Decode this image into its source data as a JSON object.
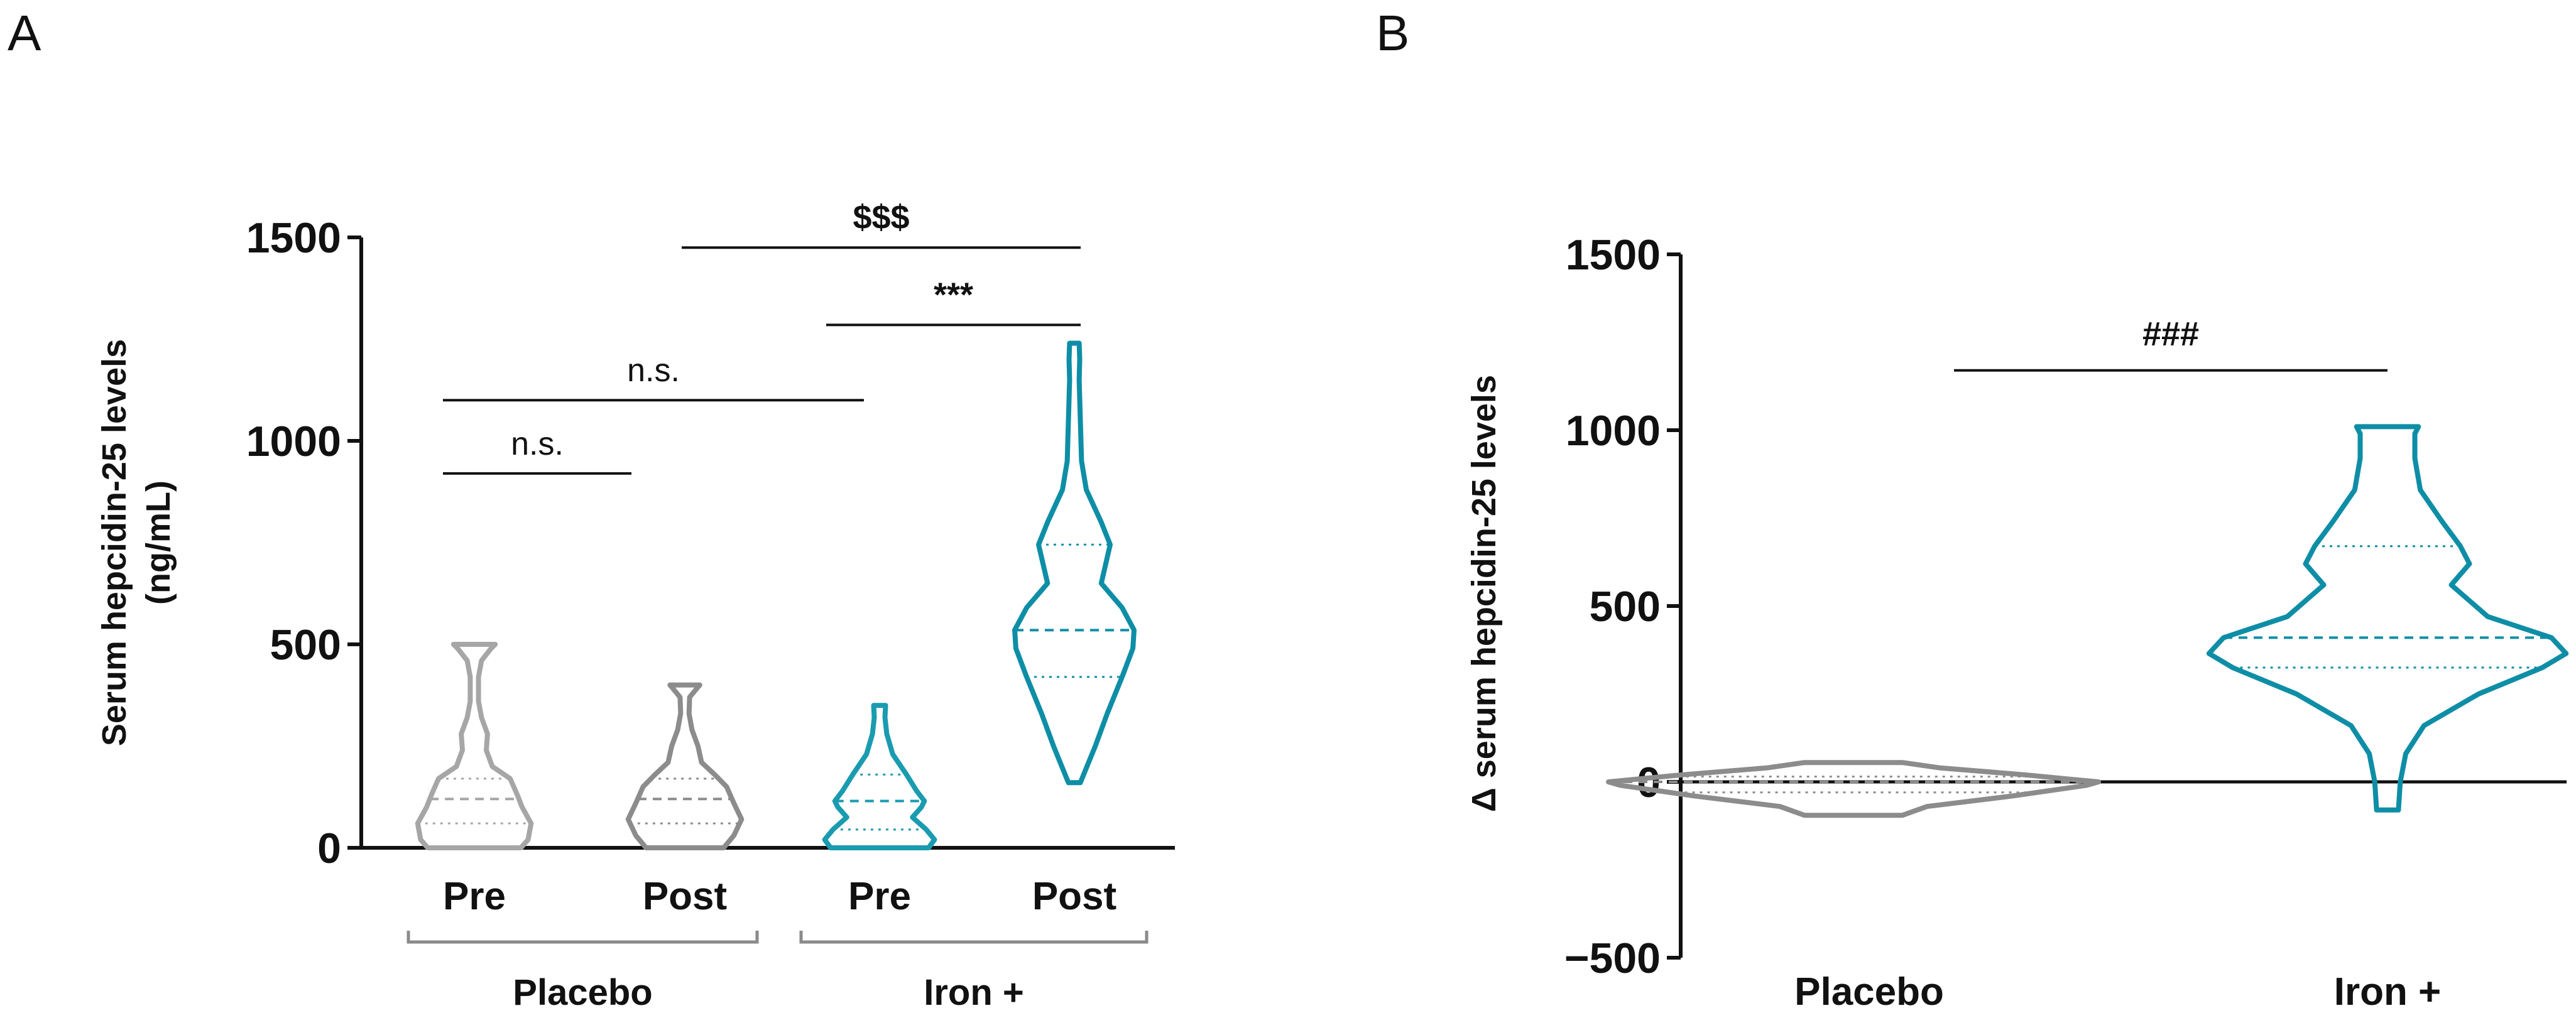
{
  "chart_data": [
    {
      "panel": "A",
      "type": "violin",
      "xlabel": "",
      "ylabel": "Serum hepcidin-25 levels",
      "ylabel_unit": "(ng/mL)",
      "ylim": [
        0,
        1500
      ],
      "yticks": [
        "0",
        "500",
        "1000",
        "1500"
      ],
      "categories": [
        "Pre",
        "Post",
        "Pre",
        "Post"
      ],
      "groups": [
        {
          "label": "Placebo",
          "members": [
            0,
            1
          ]
        },
        {
          "label": "Iron +",
          "members": [
            2,
            3
          ]
        }
      ],
      "violins": [
        {
          "category": "Pre",
          "group": "Placebo",
          "color": "#a6a6a6",
          "min": 0,
          "max": 500,
          "q1": 60,
          "median": 120,
          "q3": 170,
          "profile": [
            [
              0,
              0.78
            ],
            [
              20,
              0.9
            ],
            [
              60,
              0.95
            ],
            [
              100,
              0.8
            ],
            [
              130,
              0.72
            ],
            [
              170,
              0.6
            ],
            [
              200,
              0.3
            ],
            [
              240,
              0.2
            ],
            [
              280,
              0.22
            ],
            [
              320,
              0.12
            ],
            [
              360,
              0.07
            ],
            [
              420,
              0.07
            ],
            [
              460,
              0.12
            ],
            [
              490,
              0.28
            ],
            [
              500,
              0.35
            ]
          ]
        },
        {
          "category": "Post",
          "group": "Placebo",
          "color": "#8c8c8c",
          "min": 0,
          "max": 400,
          "q1": 60,
          "median": 120,
          "q3": 170,
          "profile": [
            [
              0,
              0.65
            ],
            [
              30,
              0.82
            ],
            [
              70,
              0.95
            ],
            [
              110,
              0.82
            ],
            [
              150,
              0.7
            ],
            [
              180,
              0.5
            ],
            [
              210,
              0.28
            ],
            [
              250,
              0.22
            ],
            [
              290,
              0.12
            ],
            [
              330,
              0.07
            ],
            [
              370,
              0.08
            ],
            [
              395,
              0.22
            ],
            [
              400,
              0.25
            ]
          ]
        },
        {
          "category": "Pre",
          "group": "Iron +",
          "color": "#1a9bb0",
          "min": 0,
          "max": 350,
          "q1": 45,
          "median": 115,
          "q3": 180,
          "profile": [
            [
              0,
              0.82
            ],
            [
              20,
              0.92
            ],
            [
              45,
              0.78
            ],
            [
              75,
              0.55
            ],
            [
              100,
              0.7
            ],
            [
              115,
              0.75
            ],
            [
              140,
              0.62
            ],
            [
              180,
              0.45
            ],
            [
              230,
              0.22
            ],
            [
              280,
              0.12
            ],
            [
              320,
              0.09
            ],
            [
              350,
              0.1
            ]
          ]
        },
        {
          "category": "Post",
          "group": "Iron +",
          "color": "#0e8ea6",
          "min": 160,
          "max": 1240,
          "q1": 420,
          "median": 535,
          "q3": 745,
          "profile": [
            [
              160,
              0.1
            ],
            [
              250,
              0.35
            ],
            [
              330,
              0.55
            ],
            [
              420,
              0.8
            ],
            [
              490,
              0.98
            ],
            [
              535,
              1.0
            ],
            [
              590,
              0.8
            ],
            [
              650,
              0.45
            ],
            [
              745,
              0.6
            ],
            [
              800,
              0.45
            ],
            [
              880,
              0.2
            ],
            [
              950,
              0.12
            ],
            [
              1050,
              0.1
            ],
            [
              1150,
              0.08
            ],
            [
              1200,
              0.09
            ],
            [
              1240,
              0.08
            ]
          ]
        }
      ],
      "significance": [
        {
          "label": "n.s.",
          "from": 0,
          "to": 1,
          "y": 920
        },
        {
          "label": "n.s.",
          "from": 0,
          "to": 2,
          "y": 1100
        },
        {
          "label": "***",
          "from": 2,
          "to": 3,
          "y": 1285
        },
        {
          "label": "$$$",
          "from": 1,
          "to": 3,
          "y": 1475
        }
      ]
    },
    {
      "panel": "B",
      "type": "violin",
      "xlabel": "",
      "ylabel": "Δ serum hepcidin-25 levels",
      "ylim": [
        -500,
        1500
      ],
      "yticks": [
        "−500",
        "0",
        "500",
        "1000",
        "1500"
      ],
      "categories": [
        "Placebo",
        "Iron +"
      ],
      "zero_line": true,
      "violins": [
        {
          "category": "Placebo",
          "color": "#8c8c8c",
          "min": -95,
          "max": 55,
          "q1": -30,
          "median": 0,
          "q3": 15,
          "profile": [
            [
              -95,
              0.2
            ],
            [
              -70,
              0.3
            ],
            [
              -40,
              0.65
            ],
            [
              -10,
              0.95
            ],
            [
              0,
              1.0
            ],
            [
              20,
              0.7
            ],
            [
              40,
              0.35
            ],
            [
              55,
              0.2
            ]
          ]
        },
        {
          "category": "Iron +",
          "color": "#0e8ea6",
          "min": -80,
          "max": 1010,
          "q1": 325,
          "median": 410,
          "q3": 670,
          "profile": [
            [
              -80,
              0.06
            ],
            [
              0,
              0.07
            ],
            [
              80,
              0.1
            ],
            [
              160,
              0.2
            ],
            [
              250,
              0.5
            ],
            [
              325,
              0.85
            ],
            [
              365,
              0.98
            ],
            [
              410,
              0.9
            ],
            [
              470,
              0.55
            ],
            [
              560,
              0.35
            ],
            [
              620,
              0.45
            ],
            [
              670,
              0.4
            ],
            [
              740,
              0.3
            ],
            [
              830,
              0.18
            ],
            [
              920,
              0.15
            ],
            [
              990,
              0.15
            ],
            [
              1010,
              0.17
            ]
          ]
        }
      ],
      "significance": [
        {
          "label": "###",
          "from": 0,
          "to": 1,
          "y": 1170
        }
      ]
    }
  ]
}
